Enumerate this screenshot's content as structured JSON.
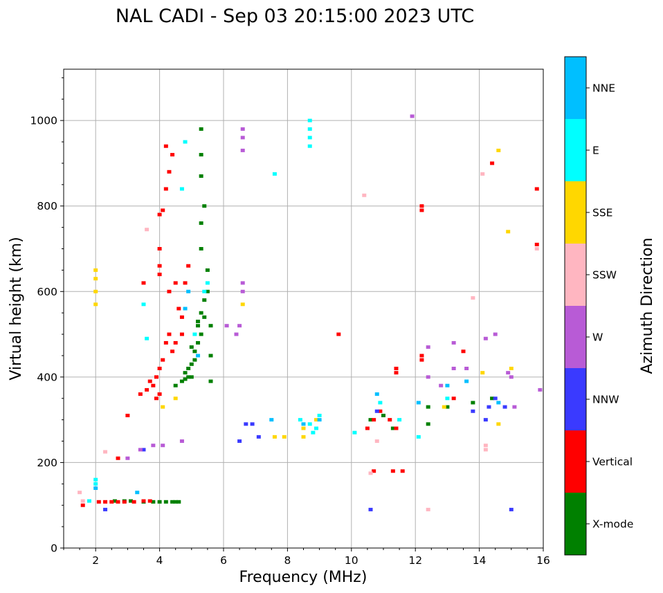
{
  "chart_data": {
    "type": "scatter",
    "title": "NAL CADI - Sep 03 20:15:00 2023 UTC",
    "xlabel": "Frequency (MHz)",
    "ylabel": "Virtual height (km)",
    "xlim": [
      1,
      16
    ],
    "ylim": [
      0,
      1120
    ],
    "xticks": [
      2,
      4,
      6,
      8,
      10,
      12,
      14,
      16
    ],
    "yticks": [
      0,
      200,
      400,
      600,
      800,
      1000
    ],
    "grid": true,
    "colorbar": {
      "label": "Azimuth Direction",
      "categories": [
        {
          "name": "X-mode",
          "color": "#008000"
        },
        {
          "name": "Vertical",
          "color": "#ff0000"
        },
        {
          "name": "NNW",
          "color": "#3a3aff"
        },
        {
          "name": "W",
          "color": "#b85bd6"
        },
        {
          "name": "SSW",
          "color": "#ffb6c1"
        },
        {
          "name": "SSE",
          "color": "#ffd700"
        },
        {
          "name": "E",
          "color": "#00ffff"
        },
        {
          "name": "NNE",
          "color": "#00bfff"
        }
      ]
    },
    "series": [
      {
        "name": "X-mode",
        "points": [
          [
            2.6,
            110
          ],
          [
            2.9,
            110
          ],
          [
            3.1,
            110
          ],
          [
            3.5,
            108
          ],
          [
            3.8,
            108
          ],
          [
            4.0,
            108
          ],
          [
            4.2,
            108
          ],
          [
            4.4,
            108
          ],
          [
            4.5,
            108
          ],
          [
            4.6,
            108
          ],
          [
            4.5,
            380
          ],
          [
            4.7,
            390
          ],
          [
            4.8,
            395
          ],
          [
            4.8,
            410
          ],
          [
            4.9,
            420
          ],
          [
            5.0,
            400
          ],
          [
            5.0,
            430
          ],
          [
            5.1,
            440
          ],
          [
            5.1,
            460
          ],
          [
            5.2,
            480
          ],
          [
            5.2,
            520
          ],
          [
            5.3,
            500
          ],
          [
            5.3,
            550
          ],
          [
            5.4,
            540
          ],
          [
            5.4,
            580
          ],
          [
            5.5,
            600
          ],
          [
            5.5,
            650
          ],
          [
            5.3,
            700
          ],
          [
            5.3,
            760
          ],
          [
            5.4,
            800
          ],
          [
            5.3,
            870
          ],
          [
            5.3,
            920
          ],
          [
            5.3,
            980
          ],
          [
            5.2,
            530
          ],
          [
            5.0,
            470
          ],
          [
            4.9,
            400
          ],
          [
            5.6,
            520
          ],
          [
            5.6,
            450
          ],
          [
            5.6,
            390
          ],
          [
            11.3,
            280
          ],
          [
            12.4,
            290
          ],
          [
            12.4,
            330
          ],
          [
            13.0,
            330
          ],
          [
            13.8,
            340
          ],
          [
            14.4,
            350
          ],
          [
            10.6,
            300
          ],
          [
            11.0,
            310
          ]
        ]
      },
      {
        "name": "Vertical",
        "points": [
          [
            1.6,
            100
          ],
          [
            2.1,
            108
          ],
          [
            2.3,
            108
          ],
          [
            2.5,
            108
          ],
          [
            2.7,
            108
          ],
          [
            2.9,
            108
          ],
          [
            3.2,
            108
          ],
          [
            3.5,
            110
          ],
          [
            3.7,
            110
          ],
          [
            2.7,
            210
          ],
          [
            3.0,
            310
          ],
          [
            3.4,
            360
          ],
          [
            3.6,
            370
          ],
          [
            3.7,
            390
          ],
          [
            3.8,
            380
          ],
          [
            3.9,
            400
          ],
          [
            4.0,
            420
          ],
          [
            4.1,
            440
          ],
          [
            4.2,
            480
          ],
          [
            4.3,
            500
          ],
          [
            4.4,
            460
          ],
          [
            4.5,
            480
          ],
          [
            4.0,
            360
          ],
          [
            3.9,
            350
          ],
          [
            4.0,
            640
          ],
          [
            4.0,
            660
          ],
          [
            4.0,
            700
          ],
          [
            4.0,
            780
          ],
          [
            4.1,
            790
          ],
          [
            4.2,
            840
          ],
          [
            4.3,
            880
          ],
          [
            4.4,
            920
          ],
          [
            4.2,
            940
          ],
          [
            4.3,
            600
          ],
          [
            4.5,
            620
          ],
          [
            4.6,
            560
          ],
          [
            4.7,
            540
          ],
          [
            4.8,
            620
          ],
          [
            4.9,
            660
          ],
          [
            4.7,
            500
          ],
          [
            3.5,
            620
          ],
          [
            10.5,
            280
          ],
          [
            10.7,
            300
          ],
          [
            10.9,
            320
          ],
          [
            11.2,
            300
          ],
          [
            11.4,
            280
          ],
          [
            11.4,
            420
          ],
          [
            11.4,
            410
          ],
          [
            12.2,
            790
          ],
          [
            12.2,
            800
          ],
          [
            12.2,
            450
          ],
          [
            12.2,
            440
          ],
          [
            13.2,
            350
          ],
          [
            13.5,
            460
          ],
          [
            14.4,
            900
          ],
          [
            15.8,
            840
          ],
          [
            15.8,
            710
          ],
          [
            9.6,
            500
          ],
          [
            10.7,
            180
          ],
          [
            11.3,
            180
          ],
          [
            11.6,
            180
          ]
        ]
      },
      {
        "name": "NNW",
        "points": [
          [
            2.3,
            90
          ],
          [
            3.5,
            230
          ],
          [
            6.5,
            250
          ],
          [
            6.7,
            290
          ],
          [
            6.9,
            290
          ],
          [
            7.1,
            260
          ],
          [
            10.6,
            90
          ],
          [
            10.8,
            320
          ],
          [
            13.8,
            320
          ],
          [
            14.3,
            330
          ],
          [
            14.5,
            350
          ],
          [
            14.8,
            330
          ],
          [
            15.0,
            90
          ],
          [
            14.2,
            300
          ]
        ]
      },
      {
        "name": "W",
        "points": [
          [
            3.0,
            210
          ],
          [
            3.4,
            230
          ],
          [
            3.8,
            240
          ],
          [
            4.1,
            240
          ],
          [
            4.7,
            250
          ],
          [
            6.6,
            930
          ],
          [
            6.6,
            960
          ],
          [
            6.6,
            980
          ],
          [
            6.6,
            600
          ],
          [
            6.6,
            620
          ],
          [
            6.1,
            520
          ],
          [
            6.4,
            500
          ],
          [
            6.5,
            520
          ],
          [
            12.4,
            400
          ],
          [
            12.4,
            470
          ],
          [
            12.8,
            380
          ],
          [
            13.2,
            420
          ],
          [
            13.2,
            480
          ],
          [
            13.6,
            420
          ],
          [
            14.2,
            490
          ],
          [
            14.5,
            500
          ],
          [
            14.9,
            410
          ],
          [
            15.1,
            330
          ],
          [
            15.0,
            400
          ],
          [
            15.9,
            370
          ],
          [
            11.9,
            1010
          ]
        ]
      },
      {
        "name": "SSW",
        "points": [
          [
            1.5,
            130
          ],
          [
            1.6,
            110
          ],
          [
            2.3,
            225
          ],
          [
            3.6,
            745
          ],
          [
            10.4,
            825
          ],
          [
            10.6,
            175
          ],
          [
            10.8,
            250
          ],
          [
            12.4,
            90
          ],
          [
            13.8,
            585
          ],
          [
            14.1,
            875
          ],
          [
            14.2,
            230
          ],
          [
            14.2,
            240
          ],
          [
            15.8,
            700
          ]
        ]
      },
      {
        "name": "SSE",
        "points": [
          [
            2.0,
            570
          ],
          [
            2.0,
            600
          ],
          [
            2.0,
            630
          ],
          [
            2.0,
            650
          ],
          [
            4.1,
            330
          ],
          [
            4.5,
            350
          ],
          [
            6.6,
            570
          ],
          [
            7.6,
            260
          ],
          [
            7.9,
            260
          ],
          [
            8.5,
            260
          ],
          [
            8.5,
            280
          ],
          [
            8.9,
            300
          ],
          [
            12.9,
            330
          ],
          [
            14.1,
            410
          ],
          [
            14.6,
            930
          ],
          [
            14.9,
            740
          ],
          [
            15.0,
            420
          ],
          [
            14.6,
            290
          ]
        ]
      },
      {
        "name": "E",
        "points": [
          [
            1.8,
            110
          ],
          [
            2.0,
            150
          ],
          [
            2.0,
            160
          ],
          [
            3.5,
            570
          ],
          [
            3.6,
            490
          ],
          [
            4.7,
            840
          ],
          [
            4.8,
            950
          ],
          [
            5.1,
            500
          ],
          [
            5.4,
            600
          ],
          [
            5.5,
            620
          ],
          [
            7.6,
            875
          ],
          [
            8.4,
            300
          ],
          [
            8.7,
            290
          ],
          [
            8.8,
            270
          ],
          [
            8.9,
            280
          ],
          [
            9.0,
            310
          ],
          [
            8.7,
            1000
          ],
          [
            8.7,
            980
          ],
          [
            8.7,
            960
          ],
          [
            8.7,
            940
          ],
          [
            10.9,
            340
          ],
          [
            11.5,
            300
          ],
          [
            12.1,
            260
          ],
          [
            13.0,
            350
          ],
          [
            10.1,
            270
          ]
        ]
      },
      {
        "name": "NNE",
        "points": [
          [
            2.0,
            140
          ],
          [
            3.3,
            130
          ],
          [
            4.8,
            560
          ],
          [
            4.9,
            600
          ],
          [
            5.2,
            450
          ],
          [
            7.5,
            300
          ],
          [
            8.5,
            290
          ],
          [
            9.0,
            300
          ],
          [
            10.8,
            360
          ],
          [
            12.1,
            340
          ],
          [
            13.0,
            380
          ],
          [
            13.6,
            390
          ],
          [
            14.6,
            340
          ]
        ]
      }
    ]
  }
}
